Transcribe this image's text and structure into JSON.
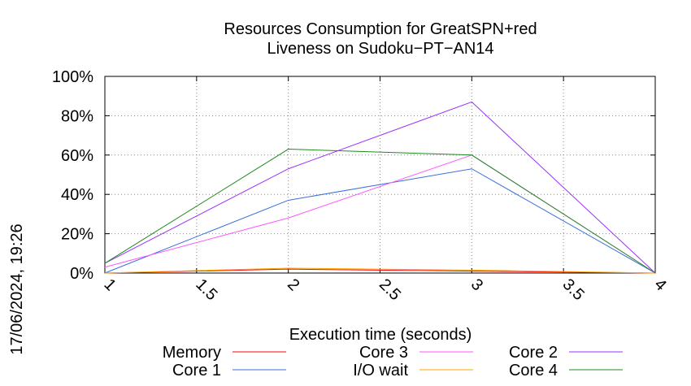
{
  "chart_data": {
    "type": "line",
    "title": [
      "Resources Consumption for GreatSPN+red",
      "Liveness on Sudoku−PT−AN14"
    ],
    "xlabel": "Execution time (seconds)",
    "ylabel": "",
    "xlim": [
      1,
      4
    ],
    "ylim": [
      0,
      100
    ],
    "x_ticks": [
      "1",
      "1.5",
      "2",
      "2.5",
      "3",
      "3.5",
      "4"
    ],
    "y_ticks": [
      "0%",
      "20%",
      "40%",
      "60%",
      "80%",
      "100%"
    ],
    "grid": true,
    "legend_position": "bottom",
    "x": [
      1,
      2,
      3,
      4
    ],
    "series": [
      {
        "name": "Memory",
        "color": "#ff0000",
        "values": [
          0,
          2,
          1,
          0
        ]
      },
      {
        "name": "Core 1",
        "color": "#3a6fd8",
        "values": [
          0,
          37,
          53,
          0
        ]
      },
      {
        "name": "Core 3",
        "color": "#ff55ff",
        "values": [
          3,
          28,
          60,
          0
        ]
      },
      {
        "name": "I/O wait",
        "color": "#ffa500",
        "values": [
          0,
          2.5,
          1.5,
          0
        ]
      },
      {
        "name": "Core 2",
        "color": "#9b30ff",
        "values": [
          5,
          53,
          87,
          0
        ]
      },
      {
        "name": "Core 4",
        "color": "#228b22",
        "values": [
          5,
          63,
          60,
          0
        ]
      }
    ]
  },
  "side_stamp": "17/06/2024, 19:26"
}
